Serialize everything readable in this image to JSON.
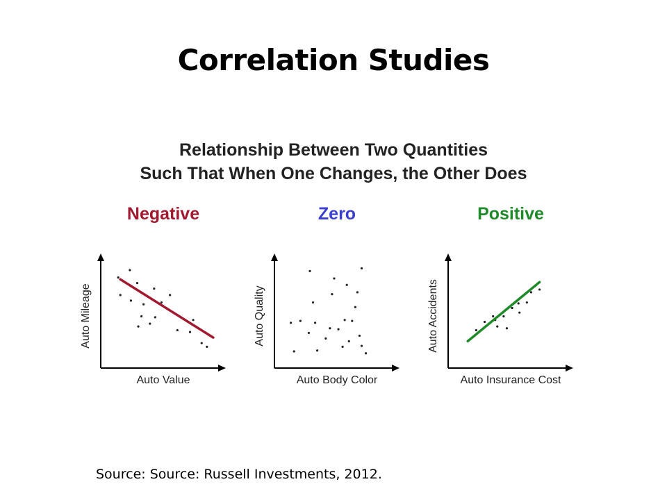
{
  "title": "Correlation Studies",
  "figure": {
    "title_line1": "Relationship Between Two Quantities",
    "title_line2": "Such That When One Changes, the Other Does"
  },
  "colors": {
    "negative": "#a0192e",
    "zero": "#3a3fd0",
    "positive": "#1f8a2a",
    "axis": "#000000",
    "dots": "#222222"
  },
  "chart_data": [
    {
      "type": "scatter",
      "title": "Negative",
      "color_key": "negative",
      "xlabel": "Auto Value",
      "ylabel": "Auto Mileage",
      "xlim": [
        0,
        10
      ],
      "ylim": [
        0,
        10
      ],
      "trend_line": [
        [
          1,
          8.7
        ],
        [
          9.8,
          2.4
        ]
      ],
      "points": [
        [
          0.8,
          8.9
        ],
        [
          1.9,
          9.7
        ],
        [
          2.6,
          8.3
        ],
        [
          4.2,
          7.7
        ],
        [
          5.7,
          7.0
        ],
        [
          2.0,
          6.4
        ],
        [
          3.2,
          6.0
        ],
        [
          4.9,
          6.2
        ],
        [
          1.0,
          7.0
        ],
        [
          3.0,
          4.7
        ],
        [
          3.8,
          3.9
        ],
        [
          4.3,
          4.6
        ],
        [
          2.7,
          3.6
        ],
        [
          6.4,
          3.2
        ],
        [
          7.6,
          3.0
        ],
        [
          7.9,
          4.3
        ],
        [
          8.7,
          1.8
        ],
        [
          9.2,
          1.4
        ]
      ]
    },
    {
      "type": "scatter",
      "title": "Zero",
      "color_key": "zero",
      "xlabel": "Auto Body Color",
      "ylabel": "Auto Quality",
      "xlim": [
        0,
        10
      ],
      "ylim": [
        0,
        10
      ],
      "points": [
        [
          2.5,
          9.6
        ],
        [
          7.4,
          9.9
        ],
        [
          4.8,
          8.8
        ],
        [
          6.0,
          8.1
        ],
        [
          7.0,
          7.3
        ],
        [
          4.6,
          7.1
        ],
        [
          6.8,
          5.7
        ],
        [
          2.8,
          6.2
        ],
        [
          0.7,
          4.0
        ],
        [
          1.6,
          4.2
        ],
        [
          3.0,
          4.0
        ],
        [
          4.4,
          3.4
        ],
        [
          5.2,
          3.3
        ],
        [
          5.8,
          4.3
        ],
        [
          6.5,
          4.2
        ],
        [
          2.4,
          2.9
        ],
        [
          4.0,
          2.3
        ],
        [
          5.6,
          1.4
        ],
        [
          7.2,
          2.6
        ],
        [
          6.2,
          2.0
        ],
        [
          7.4,
          1.5
        ],
        [
          1.0,
          0.9
        ],
        [
          3.2,
          1.0
        ],
        [
          7.8,
          0.7
        ]
      ]
    },
    {
      "type": "scatter",
      "title": "Positive",
      "color_key": "positive",
      "xlabel": "Auto Insurance Cost",
      "ylabel": "Auto Accidents",
      "xlim": [
        0,
        10
      ],
      "ylim": [
        0,
        10
      ],
      "trend_line": [
        [
          1.0,
          2.0
        ],
        [
          7.8,
          8.4
        ]
      ],
      "points": [
        [
          1.8,
          3.2
        ],
        [
          2.6,
          4.1
        ],
        [
          3.4,
          4.7
        ],
        [
          3.8,
          3.6
        ],
        [
          4.4,
          4.7
        ],
        [
          4.7,
          3.4
        ],
        [
          5.2,
          5.6
        ],
        [
          5.8,
          6.1
        ],
        [
          6.2,
          6.9
        ],
        [
          6.6,
          6.2
        ],
        [
          7.0,
          7.3
        ],
        [
          7.4,
          8.0
        ],
        [
          5.9,
          5.1
        ],
        [
          3.6,
          4.3
        ],
        [
          7.8,
          7.6
        ]
      ]
    }
  ],
  "source": "Source: Source: Russell Investments, 2012."
}
